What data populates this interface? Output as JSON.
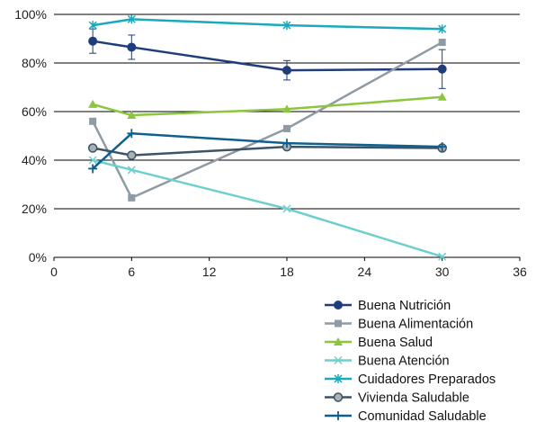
{
  "chart_data": {
    "type": "line",
    "title": "",
    "xlabel": "",
    "ylabel": "",
    "xlim": [
      0,
      36
    ],
    "ylim": [
      0,
      100
    ],
    "x_ticks": [
      "0",
      "6",
      "12",
      "18",
      "24",
      "30",
      "36"
    ],
    "y_ticks": [
      "0%",
      "20%",
      "40%",
      "60%",
      "80%",
      "100%"
    ],
    "grid": "horizontal",
    "legend_position": "bottom-right",
    "series": [
      {
        "name": "Buena Nutrición",
        "color": "#1f3d7a",
        "marker": "circle",
        "x": [
          3,
          6,
          18,
          30
        ],
        "y": [
          89,
          86.5,
          77,
          77.5
        ],
        "error": [
          [
            84,
            94
          ],
          [
            81.5,
            91.5
          ],
          [
            73,
            81
          ],
          [
            69.5,
            85.5
          ]
        ]
      },
      {
        "name": "Buena Alimentación",
        "color": "#8f9aa4",
        "marker": "square",
        "x": [
          3,
          6,
          18,
          30
        ],
        "y": [
          56,
          24.5,
          53,
          88.5
        ]
      },
      {
        "name": "Buena Salud",
        "color": "#8cc63f",
        "marker": "triangle",
        "x": [
          3,
          6,
          18,
          30
        ],
        "y": [
          63,
          58.5,
          61,
          66
        ]
      },
      {
        "name": "Buena Atención",
        "color": "#6fcfcf",
        "marker": "x",
        "x": [
          3,
          6,
          18,
          30
        ],
        "y": [
          40,
          36,
          20,
          0.3
        ]
      },
      {
        "name": "Cuidadores Preparados",
        "color": "#1aa9bd",
        "marker": "star",
        "x": [
          3,
          6,
          18,
          30
        ],
        "y": [
          95.5,
          98,
          95.5,
          94
        ]
      },
      {
        "name": "Vivienda Saludable",
        "color": "#3d5466",
        "marker": "circle-gray",
        "x": [
          3,
          6,
          18,
          30
        ],
        "y": [
          45,
          42,
          45.5,
          45
        ]
      },
      {
        "name": "Comunidad Saludable",
        "color": "#0f5f8f",
        "marker": "plus",
        "x": [
          3,
          6,
          18,
          30
        ],
        "y": [
          36.5,
          51,
          47,
          45.5
        ]
      }
    ]
  }
}
